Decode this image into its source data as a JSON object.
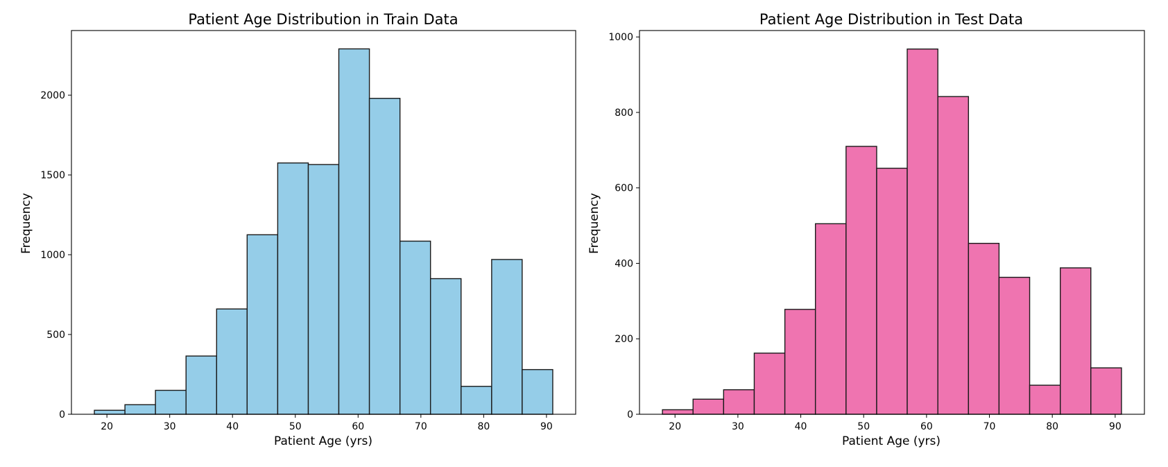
{
  "chart_data": [
    {
      "type": "bar",
      "title": "Patient Age Distribution in Train Data",
      "xlabel": "Patient Age (yrs)",
      "ylabel": "Frequency",
      "bin_edges": [
        18,
        22.87,
        27.73,
        32.6,
        37.47,
        42.33,
        47.2,
        52.07,
        56.93,
        61.8,
        66.67,
        71.53,
        76.4,
        81.27,
        86.13,
        91
      ],
      "values": [
        25,
        60,
        150,
        365,
        660,
        1125,
        1575,
        1565,
        2290,
        1980,
        1085,
        850,
        175,
        970,
        280
      ],
      "xlim": [
        14.35,
        94.65
      ],
      "ylim": [
        0,
        2405
      ],
      "xticks": [
        20,
        30,
        40,
        50,
        60,
        70,
        80,
        90
      ],
      "yticks": [
        0,
        500,
        1000,
        1500,
        2000
      ],
      "bar_color": "#95cde8",
      "edge_color": "#1a1a1a",
      "grid": false
    },
    {
      "type": "bar",
      "title": "Patient Age Distribution in Test Data",
      "xlabel": "Patient Age (yrs)",
      "ylabel": "Frequency",
      "bin_edges": [
        18,
        22.87,
        27.73,
        32.6,
        37.47,
        42.33,
        47.2,
        52.07,
        56.93,
        61.8,
        66.67,
        71.53,
        76.4,
        81.27,
        86.13,
        91
      ],
      "values": [
        12,
        40,
        65,
        162,
        278,
        505,
        710,
        652,
        968,
        842,
        453,
        363,
        77,
        388,
        123
      ],
      "xlim": [
        14.35,
        94.65
      ],
      "ylim": [
        0,
        1017
      ],
      "xticks": [
        20,
        30,
        40,
        50,
        60,
        70,
        80,
        90
      ],
      "yticks": [
        0,
        200,
        400,
        600,
        800,
        1000
      ],
      "bar_color": "#ef74b0",
      "edge_color": "#1a1a1a",
      "grid": false
    }
  ]
}
